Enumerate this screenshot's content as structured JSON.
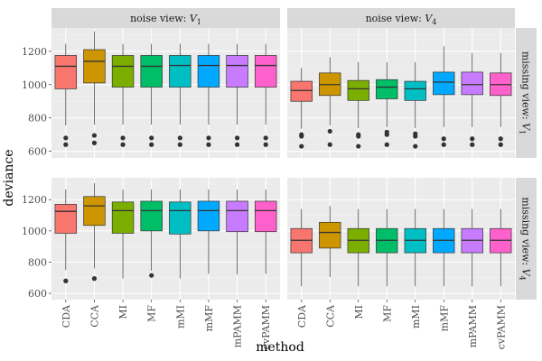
{
  "chart_data": {
    "type": "boxplot",
    "title": "",
    "xlabel": "method",
    "ylabel": "deviance",
    "ylim": [
      560,
      1340
    ],
    "yticks": [
      600,
      800,
      1000,
      1200
    ],
    "categories": [
      "CDA",
      "CCA",
      "MI",
      "MF",
      "mMI",
      "mMF",
      "mPAMM",
      "cvPAMM"
    ],
    "colors": [
      "#F8766D",
      "#CD9600",
      "#7CAE00",
      "#00BE67",
      "#00BFC4",
      "#00A9FF",
      "#C77CFF",
      "#FF61CC"
    ],
    "facet_cols": {
      "prefix": "noise view: ",
      "labels": [
        "V",
        "V"
      ],
      "subscripts": [
        "1",
        "4"
      ]
    },
    "facet_rows": {
      "prefix": "missing view: ",
      "labels": [
        "V",
        "V"
      ],
      "subscripts": [
        "1",
        "4"
      ]
    },
    "panels": [
      {
        "row": 0,
        "col": 0,
        "boxes": [
          {
            "low": 755,
            "q1": 975,
            "median": 1110,
            "q3": 1175,
            "high": 1245,
            "outliers": [
              680,
              640
            ]
          },
          {
            "low": 760,
            "q1": 1010,
            "median": 1140,
            "q3": 1210,
            "high": 1320,
            "outliers": [
              695,
              650
            ]
          },
          {
            "low": 760,
            "q1": 985,
            "median": 1110,
            "q3": 1175,
            "high": 1245,
            "outliers": [
              680,
              640
            ]
          },
          {
            "low": 760,
            "q1": 985,
            "median": 1110,
            "q3": 1175,
            "high": 1245,
            "outliers": [
              680,
              640
            ]
          },
          {
            "low": 760,
            "q1": 985,
            "median": 1115,
            "q3": 1175,
            "high": 1245,
            "outliers": [
              680,
              640
            ]
          },
          {
            "low": 760,
            "q1": 985,
            "median": 1115,
            "q3": 1175,
            "high": 1245,
            "outliers": [
              680,
              640
            ]
          },
          {
            "low": 760,
            "q1": 985,
            "median": 1115,
            "q3": 1175,
            "high": 1245,
            "outliers": [
              680,
              640
            ]
          },
          {
            "low": 760,
            "q1": 985,
            "median": 1115,
            "q3": 1175,
            "high": 1245,
            "outliers": [
              680,
              640
            ]
          }
        ]
      },
      {
        "row": 0,
        "col": 1,
        "boxes": [
          {
            "low": 735,
            "q1": 900,
            "median": 965,
            "q3": 1020,
            "high": 1100,
            "outliers": [
              700,
              690,
              630
            ]
          },
          {
            "low": 755,
            "q1": 935,
            "median": 1000,
            "q3": 1070,
            "high": 1165,
            "outliers": [
              720,
              640
            ]
          },
          {
            "low": 740,
            "q1": 905,
            "median": 975,
            "q3": 1025,
            "high": 1135,
            "outliers": [
              700,
              690,
              630
            ]
          },
          {
            "low": 745,
            "q1": 915,
            "median": 985,
            "q3": 1030,
            "high": 1135,
            "outliers": [
              715,
              700,
              640
            ]
          },
          {
            "low": 740,
            "q1": 905,
            "median": 975,
            "q3": 1020,
            "high": 1135,
            "outliers": [
              705,
              690,
              630
            ]
          },
          {
            "low": 745,
            "q1": 940,
            "median": 1015,
            "q3": 1075,
            "high": 1230,
            "outliers": [
              675,
              640
            ]
          },
          {
            "low": 745,
            "q1": 940,
            "median": 1000,
            "q3": 1075,
            "high": 1190,
            "outliers": [
              675,
              640
            ]
          },
          {
            "low": 745,
            "q1": 935,
            "median": 1000,
            "q3": 1070,
            "high": 1190,
            "outliers": [
              675,
              640
            ]
          }
        ]
      },
      {
        "row": 1,
        "col": 0,
        "boxes": [
          {
            "low": 750,
            "q1": 985,
            "median": 1125,
            "q3": 1170,
            "high": 1265,
            "outliers": [
              680
            ]
          },
          {
            "low": 760,
            "q1": 1035,
            "median": 1160,
            "q3": 1220,
            "high": 1305,
            "outliers": [
              695
            ]
          },
          {
            "low": 695,
            "q1": 985,
            "median": 1130,
            "q3": 1185,
            "high": 1265,
            "outliers": []
          },
          {
            "low": 745,
            "q1": 1000,
            "median": 1130,
            "q3": 1190,
            "high": 1265,
            "outliers": [
              715
            ]
          },
          {
            "low": 695,
            "q1": 980,
            "median": 1130,
            "q3": 1185,
            "high": 1265,
            "outliers": []
          },
          {
            "low": 725,
            "q1": 1000,
            "median": 1130,
            "q3": 1190,
            "high": 1265,
            "outliers": []
          },
          {
            "low": 720,
            "q1": 995,
            "median": 1130,
            "q3": 1190,
            "high": 1265,
            "outliers": []
          },
          {
            "low": 725,
            "q1": 995,
            "median": 1130,
            "q3": 1190,
            "high": 1265,
            "outliers": []
          }
        ]
      },
      {
        "row": 1,
        "col": 1,
        "boxes": [
          {
            "low": 645,
            "q1": 860,
            "median": 940,
            "q3": 1015,
            "high": 1140,
            "outliers": []
          },
          {
            "low": 705,
            "q1": 890,
            "median": 990,
            "q3": 1055,
            "high": 1160,
            "outliers": []
          },
          {
            "low": 645,
            "q1": 860,
            "median": 940,
            "q3": 1015,
            "high": 1140,
            "outliers": []
          },
          {
            "low": 645,
            "q1": 860,
            "median": 940,
            "q3": 1015,
            "high": 1140,
            "outliers": []
          },
          {
            "low": 645,
            "q1": 860,
            "median": 940,
            "q3": 1015,
            "high": 1140,
            "outliers": []
          },
          {
            "low": 645,
            "q1": 860,
            "median": 940,
            "q3": 1015,
            "high": 1140,
            "outliers": []
          },
          {
            "low": 645,
            "q1": 860,
            "median": 940,
            "q3": 1015,
            "high": 1140,
            "outliers": []
          },
          {
            "low": 645,
            "q1": 860,
            "median": 940,
            "q3": 1015,
            "high": 1140,
            "outliers": []
          }
        ]
      }
    ]
  }
}
